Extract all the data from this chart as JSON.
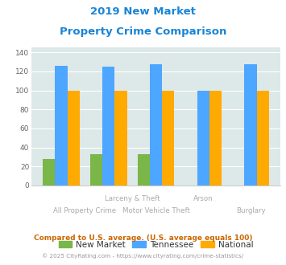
{
  "title_line1": "2019 New Market",
  "title_line2": "Property Crime Comparison",
  "new_market": [
    28,
    33,
    33,
    0,
    0
  ],
  "tennessee": [
    126,
    125,
    128,
    100,
    128
  ],
  "national": [
    100,
    100,
    100,
    100,
    100
  ],
  "color_new_market": "#7ab648",
  "color_tennessee": "#4da6ff",
  "color_national": "#ffaa00",
  "ylim": [
    0,
    145
  ],
  "yticks": [
    0,
    20,
    40,
    60,
    80,
    100,
    120,
    140
  ],
  "background_color": "#dde8e8",
  "legend_labels": [
    "New Market",
    "Tennessee",
    "National"
  ],
  "footnote1": "Compared to U.S. average. (U.S. average equals 100)",
  "footnote2": "© 2025 CityRating.com - https://www.cityrating.com/crime-statistics/",
  "title_color": "#1a85d6",
  "footnote1_color": "#cc6600",
  "footnote2_color": "#999999",
  "label_color": "#aaaaaa",
  "legend_text_color": "#333333"
}
